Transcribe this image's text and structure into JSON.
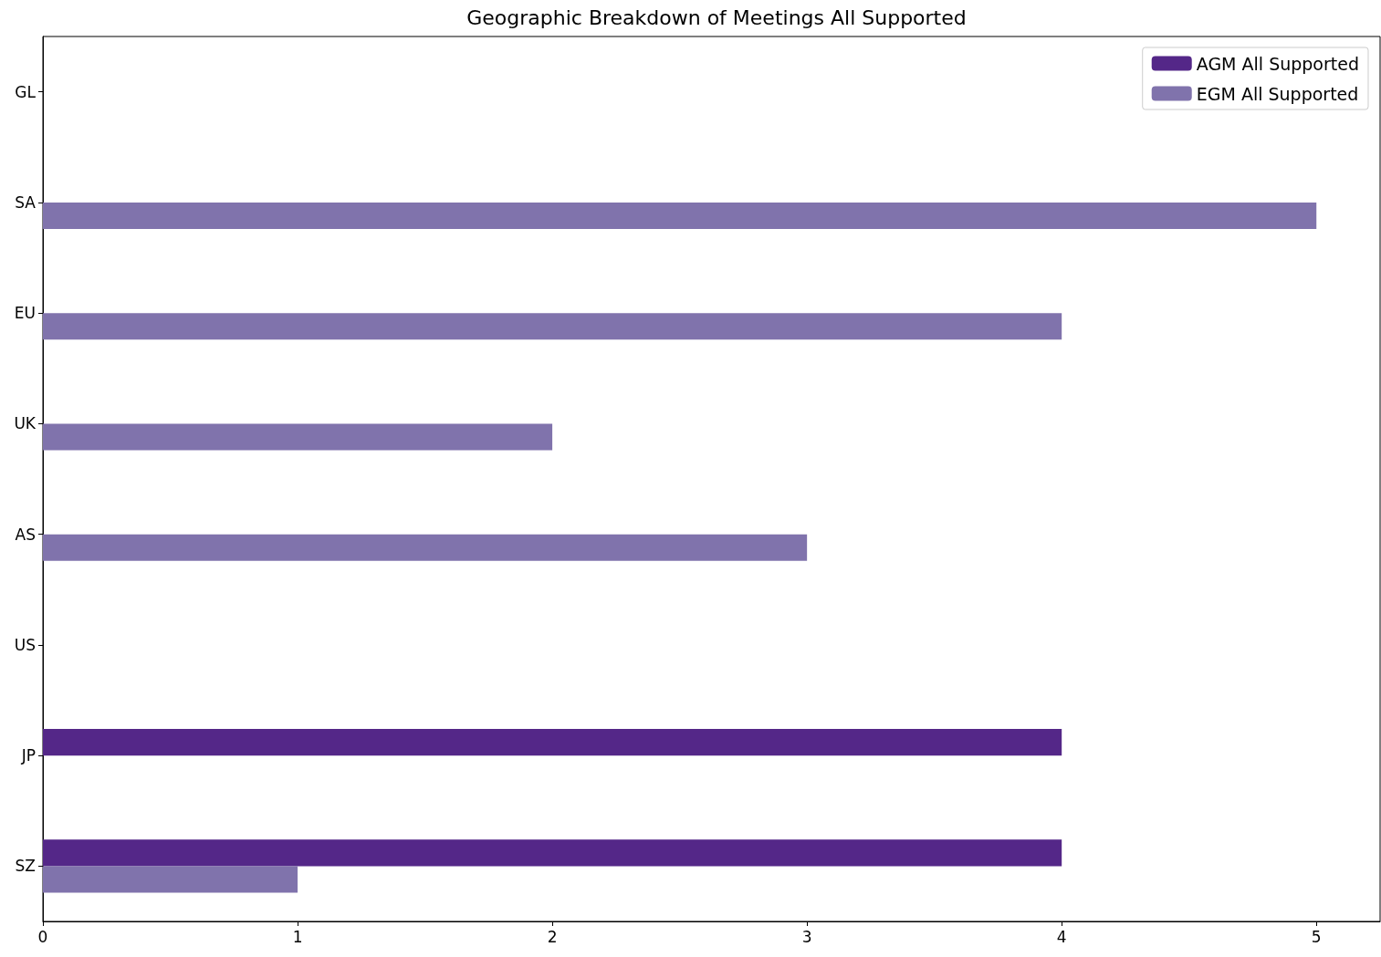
{
  "chart_data": {
    "type": "bar",
    "orientation": "horizontal",
    "title": "Geographic Breakdown of Meetings All Supported",
    "categories": [
      "GL",
      "SA",
      "EU",
      "UK",
      "AS",
      "US",
      "JP",
      "SZ"
    ],
    "series": [
      {
        "name": "AGM All Supported",
        "color": "#542788",
        "values": [
          0,
          0,
          0,
          0,
          0,
          0,
          4,
          4
        ]
      },
      {
        "name": "EGM All Supported",
        "color": "#8073ac",
        "values": [
          0,
          5,
          4,
          2,
          3,
          0,
          0,
          1
        ]
      }
    ],
    "xlim": [
      0,
      5.25
    ],
    "xticks": [
      0,
      1,
      2,
      3,
      4,
      5
    ],
    "grid": false,
    "legend": "top right"
  }
}
